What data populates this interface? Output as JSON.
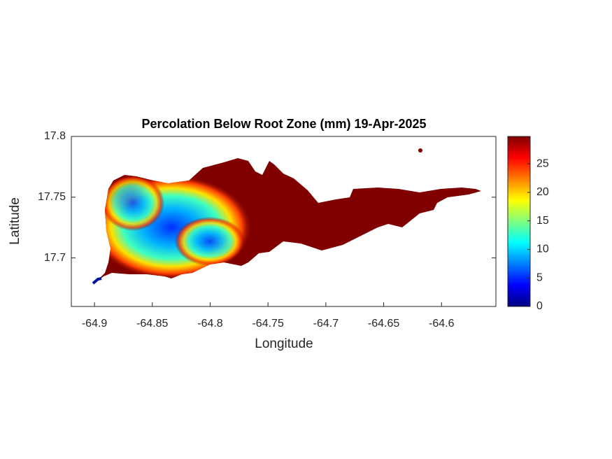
{
  "chart_data": {
    "type": "map",
    "title": "Percolation Below Root Zone (mm) 19-Apr-2025",
    "xlabel": "Longitude",
    "ylabel": "Latitude",
    "xlim": [
      -64.92,
      -64.553
    ],
    "xticks": [
      -64.9,
      -64.85,
      -64.8,
      -64.75,
      -64.7,
      -64.65,
      -64.6
    ],
    "ylim": [
      17.66,
      17.8
    ],
    "yticks": [
      17.7,
      17.75,
      17.8
    ],
    "colorbar": {
      "colormap": "jet",
      "lim": [
        0,
        29.8
      ],
      "ticks": [
        0,
        5,
        10,
        15,
        20,
        25
      ]
    }
  }
}
